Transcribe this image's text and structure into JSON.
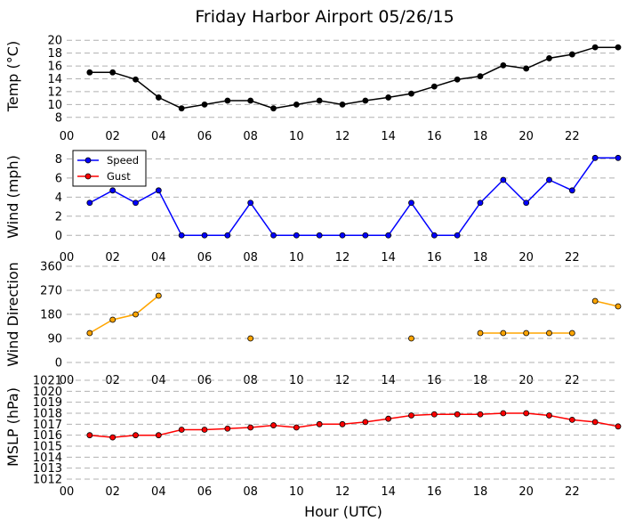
{
  "chart_data": {
    "title": "Friday Harbor Airport 05/26/15",
    "xlabel": "Hour (UTC)",
    "x_tick_labels": [
      "00",
      "02",
      "04",
      "06",
      "08",
      "10",
      "12",
      "14",
      "16",
      "18",
      "20",
      "22"
    ],
    "x_range": [
      0,
      24
    ],
    "panels": [
      {
        "id": "temp",
        "type": "line",
        "ylabel": "Temp ($^\\circ$C)",
        "ylabel_display": "Temp (°C)",
        "ylim": [
          7,
          21
        ],
        "yticks": [
          8,
          10,
          12,
          14,
          16,
          18,
          20
        ],
        "grid": "horizontal-dashed",
        "series": [
          {
            "color": "#000000",
            "x": [
              1,
              2,
              3,
              4,
              5,
              6,
              7,
              8,
              9,
              10,
              11,
              12,
              13,
              14,
              15,
              16,
              17,
              18,
              19,
              20,
              21,
              22,
              23,
              24
            ],
            "y": [
              15.0,
              15.0,
              13.9,
              11.1,
              9.4,
              10.0,
              10.6,
              10.6,
              9.4,
              10.0,
              10.6,
              10.0,
              10.6,
              11.1,
              11.7,
              12.8,
              13.9,
              14.4,
              16.1,
              15.6,
              17.2,
              17.8,
              18.9,
              18.9
            ]
          }
        ]
      },
      {
        "id": "wind",
        "type": "line",
        "ylabel": "Wind (mph)",
        "ylim": [
          -1,
          8.5
        ],
        "yticks": [
          0,
          2,
          4,
          6,
          8
        ],
        "grid": "horizontal-dashed",
        "legend": "top-left",
        "series": [
          {
            "name": "Speed",
            "color": "#0000ff",
            "x": [
              1,
              2,
              3,
              4,
              5,
              6,
              7,
              8,
              9,
              10,
              11,
              12,
              13,
              14,
              15,
              16,
              17,
              18,
              19,
              20,
              21,
              22,
              23,
              24
            ],
            "y": [
              3.4,
              4.7,
              3.4,
              4.7,
              0,
              0,
              0,
              3.4,
              0,
              0,
              0,
              0,
              0,
              0,
              3.4,
              0,
              0,
              3.4,
              5.8,
              3.4,
              5.8,
              4.7,
              8.1,
              8.1
            ]
          },
          {
            "name": "Gust",
            "color": "#ff0000",
            "x": [],
            "y": []
          }
        ]
      },
      {
        "id": "direction",
        "type": "line",
        "ylabel": "Wind Direction",
        "ylim": [
          -20,
          360
        ],
        "yticks": [
          0,
          90,
          180,
          270,
          360
        ],
        "grid": "horizontal-dashed",
        "series": [
          {
            "color": "#ffa500",
            "segments": [
              {
                "x": [
                  1,
                  2,
                  3,
                  4
                ],
                "y": [
                  110,
                  160,
                  180,
                  250
                ]
              },
              {
                "x": [
                  8
                ],
                "y": [
                  90
                ]
              },
              {
                "x": [
                  15
                ],
                "y": [
                  90
                ]
              },
              {
                "x": [
                  18,
                  19,
                  20,
                  21,
                  22
                ],
                "y": [
                  110,
                  110,
                  110,
                  110,
                  110
                ]
              },
              {
                "x": [
                  23,
                  24
                ],
                "y": [
                  230,
                  210
                ]
              }
            ]
          }
        ]
      },
      {
        "id": "mslp",
        "type": "line",
        "ylabel": "MSLP (hPa)",
        "ylim": [
          1012,
          1021
        ],
        "yticks": [
          1012,
          1013,
          1014,
          1015,
          1016,
          1017,
          1018,
          1019,
          1020,
          1021
        ],
        "grid": "horizontal-dashed",
        "series": [
          {
            "color": "#ff0000",
            "x": [
              1,
              2,
              3,
              4,
              5,
              6,
              7,
              8,
              9,
              10,
              11,
              12,
              13,
              14,
              15,
              16,
              17,
              18,
              19,
              20,
              21,
              22,
              23,
              24
            ],
            "y": [
              1016.0,
              1015.8,
              1016.0,
              1016.0,
              1016.5,
              1016.5,
              1016.6,
              1016.7,
              1016.9,
              1016.7,
              1017.0,
              1017.0,
              1017.2,
              1017.5,
              1017.8,
              1017.9,
              1017.9,
              1017.9,
              1018.0,
              1018.0,
              1017.8,
              1017.4,
              1017.2,
              1016.8
            ]
          }
        ]
      }
    ]
  }
}
